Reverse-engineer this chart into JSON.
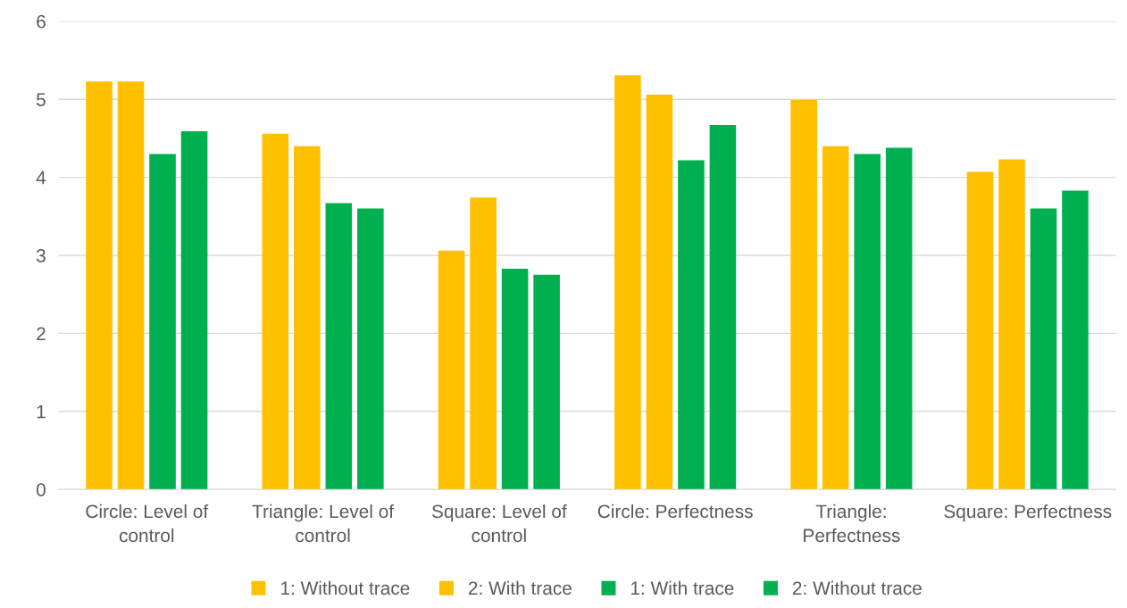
{
  "chart_data": {
    "type": "bar",
    "categories": [
      "Circle: Level of control",
      "Triangle: Level of control",
      "Square: Level of control",
      "Circle: Perfectness",
      "Triangle: Perfectness",
      "Square: Perfectness"
    ],
    "series": [
      {
        "name": "1: Without trace",
        "color": "#ffc000",
        "values": [
          5.23,
          4.56,
          3.06,
          5.31,
          4.99,
          4.07
        ]
      },
      {
        "name": "2: With trace",
        "color": "#ffc000",
        "values": [
          5.23,
          4.4,
          3.74,
          5.06,
          4.4,
          4.23
        ]
      },
      {
        "name": "1: With trace",
        "color": "#00b050",
        "values": [
          4.3,
          3.67,
          2.83,
          4.22,
          4.3,
          3.6
        ]
      },
      {
        "name": "2: Without trace",
        "color": "#00b050",
        "values": [
          4.59,
          3.6,
          2.75,
          4.67,
          4.38,
          3.83
        ]
      }
    ],
    "ylim": [
      0,
      6
    ],
    "yticks": [
      0,
      1,
      2,
      3,
      4,
      5,
      6
    ],
    "grid": "y",
    "legend": "bottom"
  }
}
